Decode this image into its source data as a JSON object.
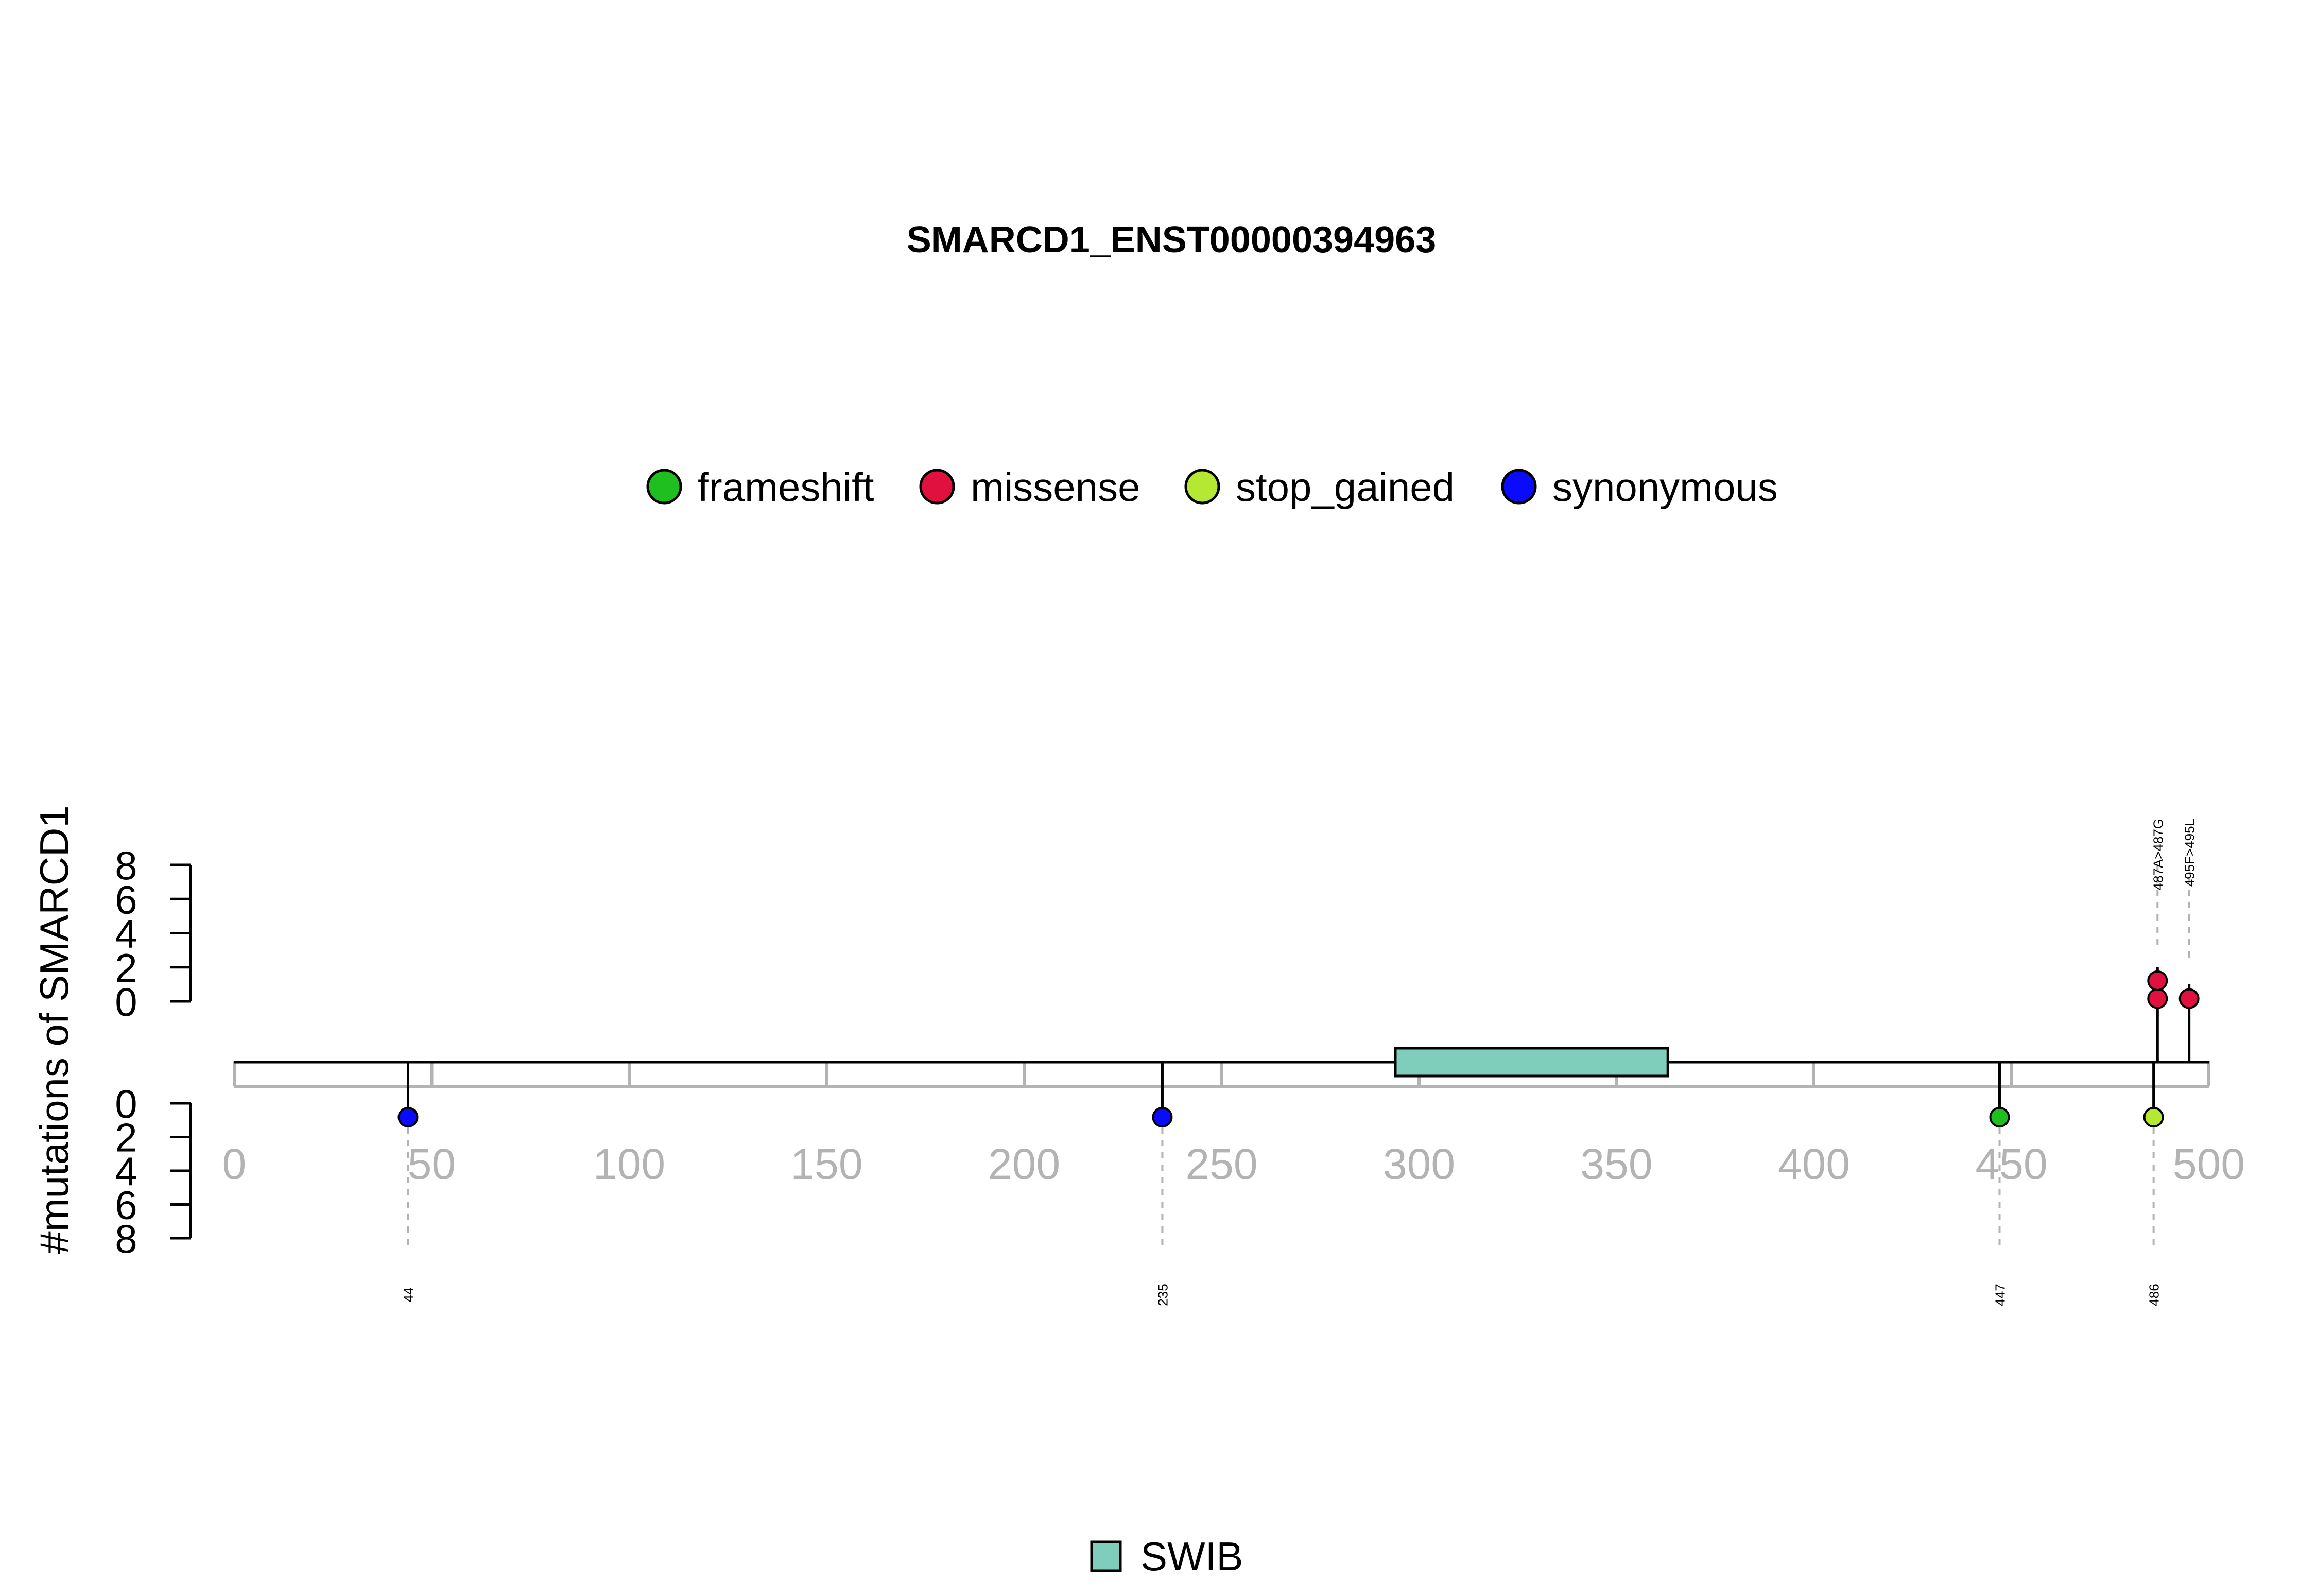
{
  "chart_data": {
    "type": "lollipop",
    "title": "SMARCD1_ENST00000394963",
    "ylabel": "#mutations of SMARCD1",
    "xlim": [
      0,
      500
    ],
    "x_ticks": [
      0,
      50,
      100,
      150,
      200,
      250,
      300,
      350,
      400,
      450,
      500
    ],
    "y_ticks": [
      0,
      2,
      4,
      6,
      8
    ],
    "ylim": [
      0,
      8
    ],
    "protein_length": 500,
    "series": [
      {
        "name": "frameshift",
        "color": "#1fbf1f"
      },
      {
        "name": "missense",
        "color": "#e0103f"
      },
      {
        "name": "stop_gained",
        "color": "#b4e832"
      },
      {
        "name": "synonymous",
        "color": "#0a0aff"
      }
    ],
    "mutations_top": [
      {
        "position": 487,
        "count": 2,
        "type": "missense",
        "label": "487A>487G"
      },
      {
        "position": 495,
        "count": 1,
        "type": "missense",
        "label": "495F>495L"
      }
    ],
    "mutations_bottom": [
      {
        "position": 44,
        "count": 1,
        "type": "synonymous",
        "label": "44"
      },
      {
        "position": 235,
        "count": 1,
        "type": "synonymous",
        "label": "235"
      },
      {
        "position": 447,
        "count": 1,
        "type": "frameshift",
        "label": "447"
      },
      {
        "position": 486,
        "count": 1,
        "type": "stop_gained",
        "label": "486"
      }
    ],
    "domains": [
      {
        "name": "SWIB",
        "start": 294,
        "end": 363,
        "color": "#7fcdbb"
      }
    ],
    "domain_legend": [
      {
        "name": "SWIB",
        "color": "#7fcdbb"
      }
    ]
  }
}
